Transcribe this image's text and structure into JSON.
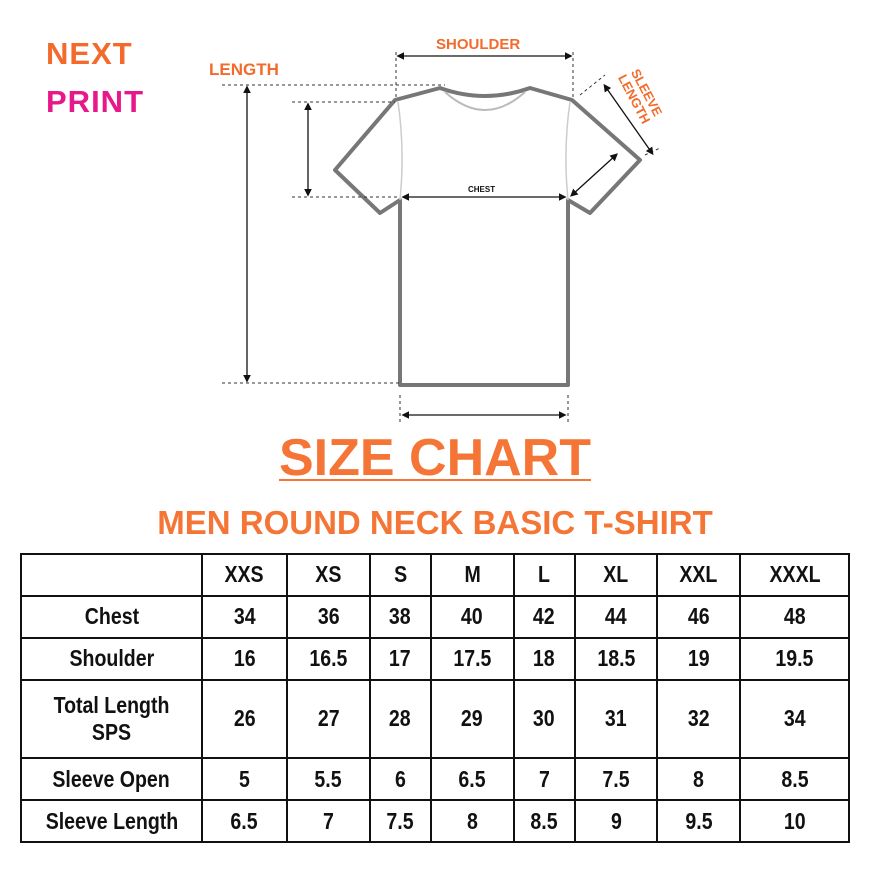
{
  "logo": {
    "line1": "NEXT",
    "line2": "PRINT",
    "colors": {
      "next": "#f26b2c",
      "print": "#e8178a"
    }
  },
  "diagram": {
    "labels": {
      "length": "LENGTH",
      "shoulder": "SHOULDER",
      "sleeve_length": "SLEEVE LENGTH",
      "chest": "CHEST"
    }
  },
  "title": "SIZE CHART",
  "subtitle": "MEN ROUND NECK BASIC T-SHIRT",
  "accent_color": "#f47535",
  "table": {
    "headers": [
      "",
      "XXS",
      "XS",
      "S",
      "M",
      "L",
      "XL",
      "XXL",
      "XXXL"
    ],
    "rows": [
      {
        "label": "Chest",
        "values": [
          "34",
          "36",
          "38",
          "40",
          "42",
          "44",
          "46",
          "48"
        ]
      },
      {
        "label": "Shoulder",
        "values": [
          "16",
          "16.5",
          "17",
          "17.5",
          "18",
          "18.5",
          "19",
          "19.5"
        ]
      },
      {
        "label": "Total Length SPS",
        "values": [
          "26",
          "27",
          "28",
          "29",
          "30",
          "31",
          "32",
          "34"
        ]
      },
      {
        "label": "Sleeve Open",
        "values": [
          "5",
          "5.5",
          "6",
          "6.5",
          "7",
          "7.5",
          "8",
          "8.5"
        ]
      },
      {
        "label": "Sleeve Length",
        "values": [
          "6.5",
          "7",
          "7.5",
          "8",
          "8.5",
          "9",
          "9.5",
          "10"
        ]
      }
    ]
  }
}
